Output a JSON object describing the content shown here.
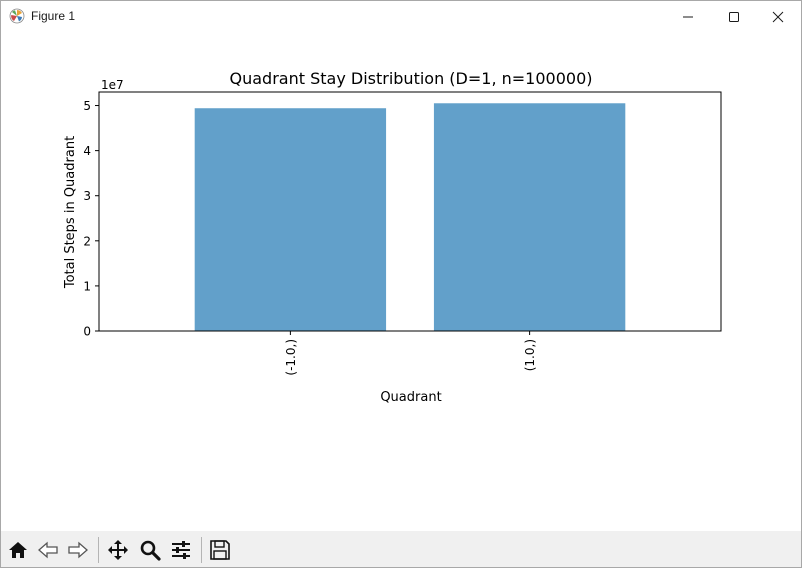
{
  "window": {
    "title": "Figure 1"
  },
  "toolbar": {
    "buttons": [
      {
        "name": "home",
        "icon": "home-icon"
      },
      {
        "name": "back",
        "icon": "arrow-left-icon"
      },
      {
        "name": "forward",
        "icon": "arrow-right-icon"
      },
      {
        "name": "pan",
        "icon": "move-icon"
      },
      {
        "name": "zoom",
        "icon": "magnifier-icon"
      },
      {
        "name": "configure-subplots",
        "icon": "sliders-icon"
      },
      {
        "name": "save",
        "icon": "floppy-disk-icon"
      }
    ]
  },
  "chart_data": {
    "type": "bar",
    "title": "Quadrant Stay Distribution (D=1, n=100000)",
    "xlabel": "Quadrant",
    "ylabel": "Total Steps in Quadrant",
    "offset_text": "1e7",
    "categories": [
      "(-1.0,)",
      "(1.0,)"
    ],
    "values": [
      49400000,
      50500000
    ],
    "ylim": [
      0,
      53000000
    ],
    "yticks": [
      0,
      10000000,
      20000000,
      30000000,
      40000000,
      50000000
    ],
    "ytick_labels": [
      "0",
      "1",
      "2",
      "3",
      "4",
      "5"
    ],
    "bar_color": "#62a0ca",
    "grid": false,
    "legend": "none"
  }
}
